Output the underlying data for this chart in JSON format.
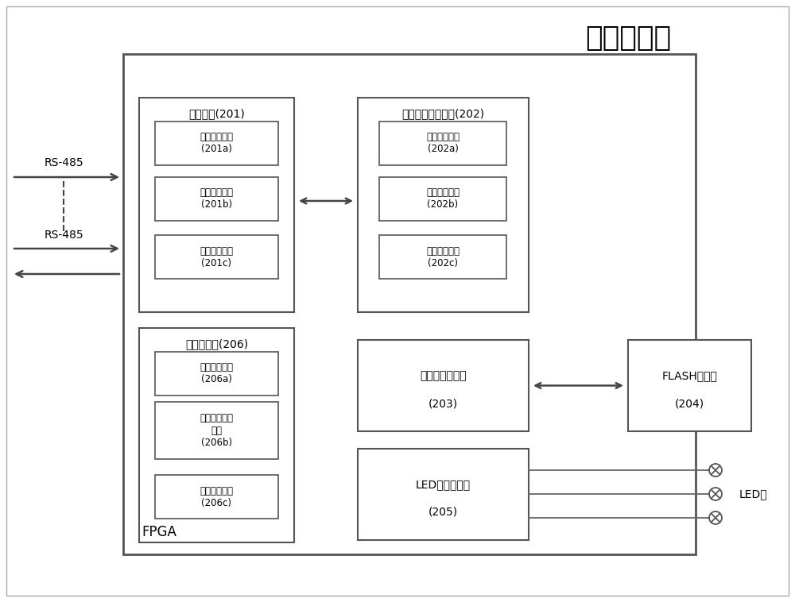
{
  "title": "逻辑处理卡",
  "background_color": "#ffffff",
  "fpga_label": "FPGA",
  "rs485_labels": [
    "RS-485",
    "RS-485"
  ],
  "module_201_label": "通信模块(201)",
  "module_201_subs": [
    "通信接收接口\n(201a)",
    "通信控制模块\n(201b)",
    "通信发送接口\n(201c)"
  ],
  "module_202_label": "核心逻辑处理模块(202)",
  "module_202_subs": [
    "输入输出接口\n(202a)",
    "逻辑控制模块\n(202b)",
    "通道控制模块\n(202c)"
  ],
  "module_203_label": "整定值修改模块",
  "module_203_num": "(203)",
  "module_204_label": "FLASH存储器",
  "module_204_num": "(204)",
  "module_205_label": "LED灯控制模块",
  "module_205_num": "(205)",
  "module_206_label": "自诊断模块(206)",
  "module_206_subs": [
    "故障诊断模块\n(206a)",
    "故障安全处理\n模块\n(206b)",
    "故障显示模块\n(206c)"
  ],
  "led_label": "LED灯",
  "line_color": "#555555",
  "arrow_color": "#444444"
}
